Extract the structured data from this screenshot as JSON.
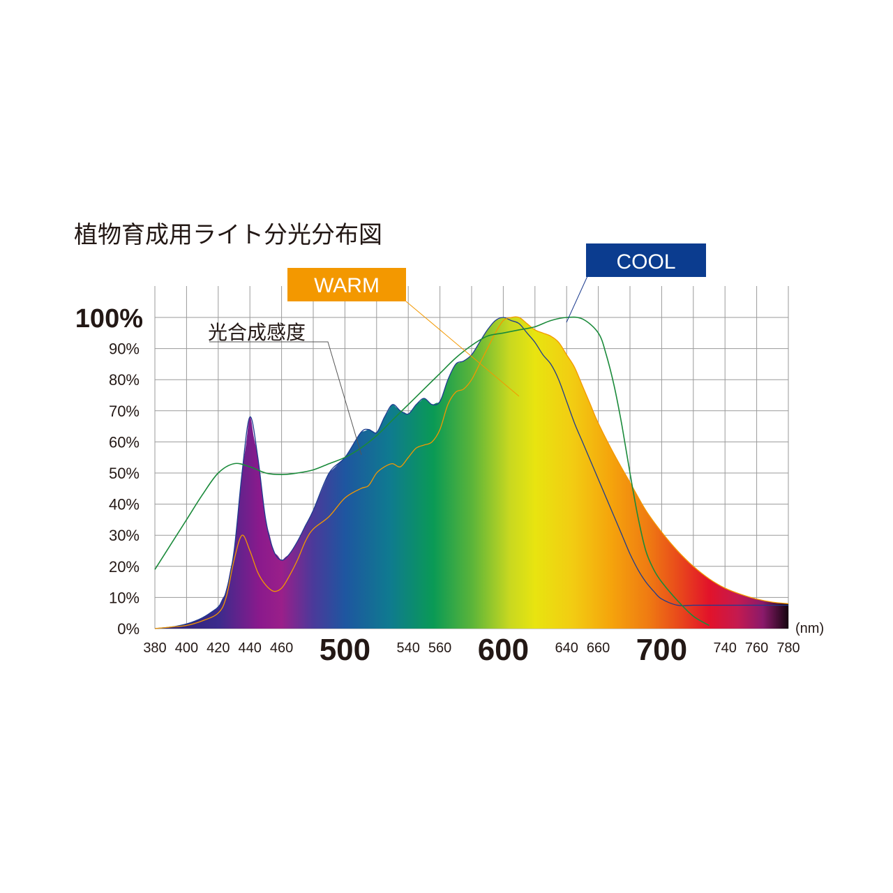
{
  "chart_data": {
    "type": "area",
    "title": "植物育成用ライト分光分布図",
    "xunit": "(nm)",
    "xlim": [
      380,
      780
    ],
    "ylim": [
      0,
      100
    ],
    "x_ticks": [
      {
        "value": 380,
        "label": "380",
        "big": false
      },
      {
        "value": 400,
        "label": "400",
        "big": false
      },
      {
        "value": 420,
        "label": "420",
        "big": false
      },
      {
        "value": 440,
        "label": "440",
        "big": false
      },
      {
        "value": 460,
        "label": "460",
        "big": false
      },
      {
        "value": 500,
        "label": "500",
        "big": true
      },
      {
        "value": 540,
        "label": "540",
        "big": false
      },
      {
        "value": 560,
        "label": "560",
        "big": false
      },
      {
        "value": 600,
        "label": "600",
        "big": true
      },
      {
        "value": 640,
        "label": "640",
        "big": false
      },
      {
        "value": 660,
        "label": "660",
        "big": false
      },
      {
        "value": 700,
        "label": "700",
        "big": true
      },
      {
        "value": 740,
        "label": "740",
        "big": false
      },
      {
        "value": 760,
        "label": "760",
        "big": false
      },
      {
        "value": 780,
        "label": "780",
        "big": false
      }
    ],
    "y_ticks": [
      {
        "value": 0,
        "label": "0%",
        "big": false
      },
      {
        "value": 10,
        "label": "10%",
        "big": false
      },
      {
        "value": 20,
        "label": "20%",
        "big": false
      },
      {
        "value": 30,
        "label": "30%",
        "big": false
      },
      {
        "value": 40,
        "label": "40%",
        "big": false
      },
      {
        "value": 50,
        "label": "50%",
        "big": false
      },
      {
        "value": 60,
        "label": "60%",
        "big": false
      },
      {
        "value": 70,
        "label": "70%",
        "big": false
      },
      {
        "value": 80,
        "label": "80%",
        "big": false
      },
      {
        "value": 90,
        "label": "90%",
        "big": false
      },
      {
        "value": 100,
        "label": "100%",
        "big": true
      }
    ],
    "series": [
      {
        "name": "COOL",
        "color": "#1d3c8f",
        "x": [
          380,
          390,
          400,
          410,
          420,
          425,
          430,
          435,
          440,
          445,
          450,
          455,
          460,
          465,
          470,
          475,
          480,
          490,
          500,
          510,
          515,
          520,
          525,
          530,
          535,
          540,
          545,
          550,
          555,
          560,
          565,
          570,
          575,
          580,
          585,
          590,
          595,
          600,
          605,
          610,
          615,
          620,
          625,
          630,
          635,
          640,
          645,
          650,
          655,
          660,
          665,
          670,
          675,
          680,
          685,
          690,
          695,
          700,
          710,
          720,
          730,
          740,
          750,
          760,
          770,
          775,
          780
        ],
        "y": [
          0,
          0.5,
          1.5,
          3.5,
          7,
          12,
          25,
          50,
          68,
          55,
          35,
          25,
          22,
          24,
          28,
          33,
          38,
          50,
          55,
          63,
          64,
          63,
          68,
          72,
          70,
          69,
          72,
          74,
          72,
          73,
          80,
          85,
          86,
          88,
          92,
          96,
          99,
          100,
          99,
          98,
          95,
          92,
          88,
          85,
          80,
          73,
          66,
          60,
          54,
          48,
          42,
          36,
          30,
          24,
          19,
          15,
          12,
          9.5,
          7.5,
          7.5,
          7.5,
          7.5,
          7.5,
          7.5,
          7.5,
          7.5,
          7.5
        ]
      },
      {
        "name": "WARM",
        "color": "#f39800",
        "x": [
          380,
          390,
          400,
          410,
          420,
          425,
          430,
          435,
          440,
          445,
          450,
          455,
          460,
          465,
          470,
          475,
          480,
          490,
          500,
          510,
          515,
          520,
          525,
          530,
          535,
          540,
          545,
          550,
          555,
          560,
          565,
          570,
          575,
          580,
          585,
          590,
          595,
          600,
          605,
          610,
          615,
          620,
          625,
          630,
          635,
          640,
          645,
          650,
          655,
          660,
          670,
          680,
          690,
          700,
          710,
          720,
          730,
          740,
          750,
          760,
          770,
          780
        ],
        "y": [
          0,
          0.5,
          1,
          2.5,
          5,
          10,
          22,
          30,
          25,
          18,
          14,
          12,
          13,
          17,
          22,
          28,
          32,
          36,
          42,
          45,
          46,
          50,
          52,
          53,
          52,
          55,
          58,
          59,
          60,
          64,
          72,
          76,
          77,
          80,
          85,
          90,
          95,
          99,
          100,
          100,
          98,
          96,
          95,
          94,
          92,
          88,
          84,
          78,
          72,
          66,
          56,
          47,
          38,
          31,
          25,
          20,
          16,
          13,
          11,
          9.5,
          8.5,
          8
        ]
      },
      {
        "name": "光合成感度",
        "color": "#1a8a3a",
        "x": [
          380,
          390,
          400,
          410,
          420,
          430,
          440,
          450,
          460,
          470,
          480,
          490,
          500,
          510,
          520,
          530,
          540,
          550,
          560,
          570,
          580,
          590,
          600,
          610,
          620,
          630,
          640,
          650,
          660,
          665,
          670,
          675,
          680,
          685,
          690,
          695,
          700,
          710,
          720,
          730
        ],
        "y": [
          19,
          27,
          35,
          43,
          50,
          53,
          52,
          50,
          49.5,
          50,
          51,
          53,
          55,
          58,
          62,
          67,
          72,
          77,
          82,
          87,
          91,
          94,
          95,
          96,
          97,
          99,
          100,
          99.5,
          95,
          88,
          78,
          65,
          50,
          36,
          25,
          19,
          15,
          9,
          4,
          1
        ]
      }
    ],
    "annotations": [
      "WARM",
      "COOL",
      "光合成感度"
    ],
    "grid": true
  },
  "legend": {
    "warm_label": "WARM",
    "warm_color": "#f39800",
    "cool_label": "COOL",
    "cool_color": "#0b3c8f",
    "photo_label": "光合成感度"
  }
}
